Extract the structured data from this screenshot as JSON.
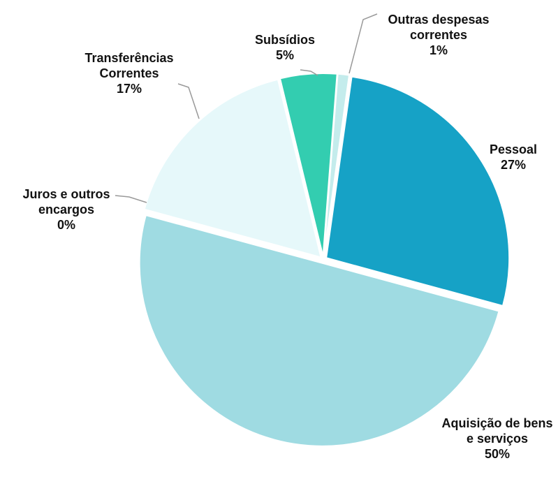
{
  "chart_data": {
    "type": "pie",
    "categories": [
      "Pessoal",
      "Aquisição de bens e serviços",
      "Juros e outros encargos",
      "Transferências Correntes",
      "Subsídios",
      "Outras despesas correntes"
    ],
    "values": [
      27,
      50,
      0,
      17,
      5,
      1
    ],
    "value_labels": [
      "27%",
      "50%",
      "0%",
      "17%",
      "5%",
      "1%"
    ],
    "colors": [
      "#16a2c6",
      "#9fdbe2",
      "#1f7f92",
      "#e6f8fa",
      "#33cdb0",
      "#c4ecec"
    ]
  }
}
